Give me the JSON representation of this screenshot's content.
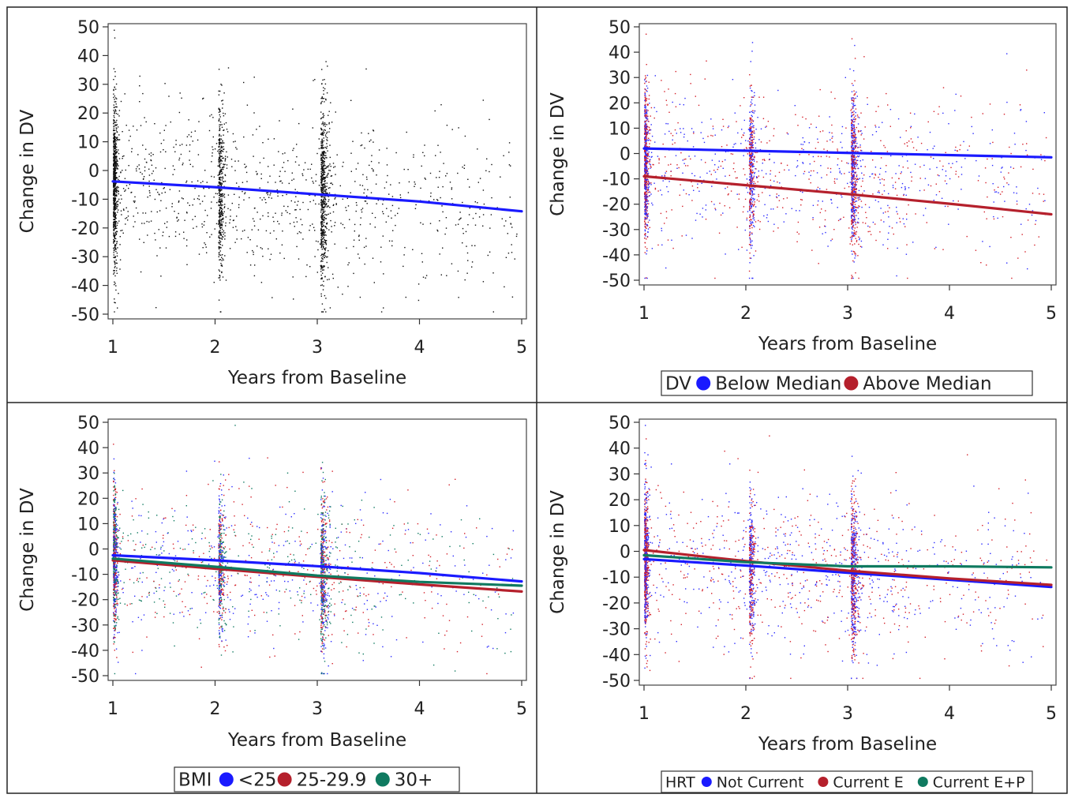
{
  "chart_data": [
    {
      "type": "scatter",
      "xlabel": "Years from Baseline",
      "ylabel": "Change in DV",
      "xlim": [
        1,
        5
      ],
      "ylim": [
        -50,
        50
      ],
      "x_ticks": [
        "1",
        "2",
        "3",
        "4",
        "5"
      ],
      "y_ticks": [
        "50",
        "40",
        "30",
        "20",
        "10",
        "0",
        "-10",
        "-20",
        "-30",
        "-40",
        "-50"
      ],
      "legend": null,
      "point_colors": [
        "#111111"
      ],
      "series": [
        {
          "color": "#1a1aff",
          "x": [
            1,
            2,
            3,
            4,
            5
          ],
          "y": [
            -3.8,
            -5.8,
            -8.3,
            -10.8,
            -14.2
          ]
        }
      ]
    },
    {
      "type": "scatter",
      "xlabel": "Years from Baseline",
      "ylabel": "Change in DV",
      "xlim": [
        1,
        5
      ],
      "ylim": [
        -50,
        50
      ],
      "x_ticks": [
        "1",
        "2",
        "3",
        "4",
        "5"
      ],
      "y_ticks": [
        "50",
        "40",
        "30",
        "20",
        "10",
        "0",
        "-10",
        "-20",
        "-30",
        "-40",
        "-50"
      ],
      "legend": {
        "title": "DV",
        "placement": "bottom",
        "items": [
          "Below Median",
          "Above Median"
        ]
      },
      "point_colors": [
        "#2b2bff",
        "#d4202a"
      ],
      "series": [
        {
          "name": "Below Median",
          "color": "#1a1aff",
          "x": [
            1,
            5
          ],
          "y": [
            2.0,
            -1.5
          ]
        },
        {
          "name": "Above Median",
          "color": "#b5202c",
          "x": [
            1,
            2,
            3,
            4,
            5
          ],
          "y": [
            -9.0,
            -12.5,
            -16.0,
            -19.8,
            -24.0
          ]
        }
      ]
    },
    {
      "type": "scatter",
      "xlabel": "Years from Baseline",
      "ylabel": "Change in DV",
      "xlim": [
        1,
        5
      ],
      "ylim": [
        -50,
        50
      ],
      "x_ticks": [
        "1",
        "2",
        "3",
        "4",
        "5"
      ],
      "y_ticks": [
        "50",
        "40",
        "30",
        "20",
        "10",
        "0",
        "-10",
        "-20",
        "-30",
        "-40",
        "-50"
      ],
      "legend": {
        "title": "BMI",
        "placement": "bottom",
        "items": [
          "<25",
          "25-29.9",
          "30+"
        ]
      },
      "point_colors": [
        "#2b2bff",
        "#d4202a",
        "#0f7a60"
      ],
      "series": [
        {
          "name": "<25",
          "color": "#1a1aff",
          "x": [
            1,
            2,
            3,
            4,
            5
          ],
          "y": [
            -2.5,
            -4.5,
            -6.8,
            -9.5,
            -12.8
          ]
        },
        {
          "name": "25-29.9",
          "color": "#b5202c",
          "x": [
            1,
            2,
            3,
            4,
            5
          ],
          "y": [
            -4.5,
            -7.8,
            -11.0,
            -14.0,
            -16.8
          ]
        },
        {
          "name": "30+",
          "color": "#0f7a60",
          "x": [
            1,
            2,
            3,
            4,
            5
          ],
          "y": [
            -3.8,
            -7.0,
            -10.5,
            -13.0,
            -14.5
          ]
        }
      ]
    },
    {
      "type": "scatter",
      "xlabel": "Years from Baseline",
      "ylabel": "Change in DV",
      "xlim": [
        1,
        5
      ],
      "ylim": [
        -50,
        50
      ],
      "x_ticks": [
        "1",
        "2",
        "3",
        "4",
        "5"
      ],
      "y_ticks": [
        "50",
        "40",
        "30",
        "20",
        "10",
        "0",
        "-10",
        "-20",
        "-30",
        "-40",
        "-50"
      ],
      "legend": {
        "title": "HRT",
        "placement": "bottom",
        "items": [
          "Not Current",
          "Current E",
          "Current E+P"
        ]
      },
      "point_colors": [
        "#2b2bff",
        "#d4202a"
      ],
      "series": [
        {
          "name": "Not Current",
          "color": "#1a1aff",
          "x": [
            1,
            2,
            3,
            4,
            5
          ],
          "y": [
            -3.0,
            -5.5,
            -8.3,
            -11.0,
            -13.8
          ]
        },
        {
          "name": "Current E",
          "color": "#b5202c",
          "x": [
            1,
            2,
            3,
            4,
            5
          ],
          "y": [
            0.5,
            -3.8,
            -7.5,
            -10.5,
            -13.0
          ]
        },
        {
          "name": "Current E+P",
          "color": "#0f7a60",
          "x": [
            1,
            2,
            3,
            4,
            5
          ],
          "y": [
            -1.5,
            -4.2,
            -5.8,
            -5.8,
            -6.2
          ]
        }
      ]
    }
  ]
}
